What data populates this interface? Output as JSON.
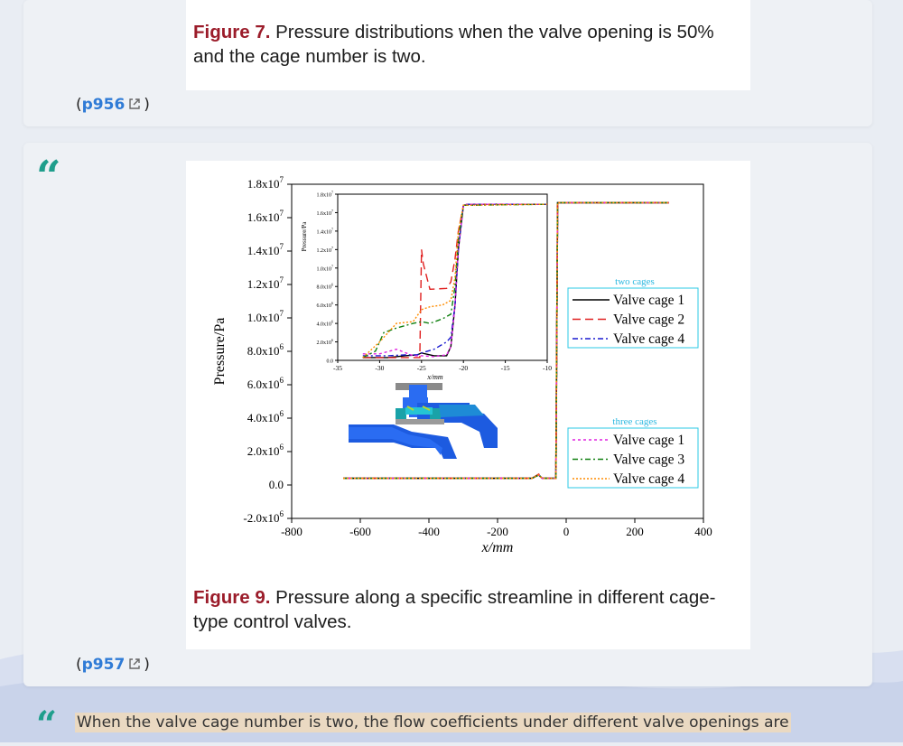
{
  "figure7": {
    "label": "Figure 7.",
    "text": " Pressure distributions when the valve opening is 50% and the cage number is two.",
    "page_ref_open": "(",
    "page_ref": "p956",
    "page_ref_close": ")"
  },
  "figure9": {
    "label": "Figure 9.",
    "text": " Pressure along a specific streamline in different cage-type control valves.",
    "page_ref_open": "(",
    "page_ref": "p957",
    "page_ref_close": ")"
  },
  "quote_mark": "“",
  "bottom_text": "When the valve cage number is two, the flow coefficients under different valve openings are",
  "chart_data": {
    "type": "line",
    "xlabel": "x/mm",
    "ylabel": "Pressure/Pa",
    "xlim": [
      -800,
      400
    ],
    "ylim": [
      -2000000,
      18000000
    ],
    "x_ticks": [
      "-800",
      "-600",
      "-400",
      "-200",
      "0",
      "200",
      "400"
    ],
    "y_ticks": [
      "-2.0x10",
      "0.0",
      "2.0x10",
      "4.0x10",
      "6.0x10",
      "8.0x10",
      "1.0x10",
      "1.2x10",
      "1.4x10",
      "1.6x10",
      "1.8x10"
    ],
    "y_tick_values": [
      -2000000,
      0,
      2000000,
      4000000,
      6000000,
      8000000,
      10000000,
      12000000,
      14000000,
      16000000,
      18000000
    ],
    "y_tick_exps": [
      "6",
      "",
      "6",
      "6",
      "6",
      "6",
      "7",
      "7",
      "7",
      "7",
      "7"
    ],
    "legend_groups": [
      {
        "title": "two cages",
        "entries": [
          "Valve cage 1",
          "Valve cage 2",
          "Valve cage 4"
        ]
      },
      {
        "title": "three cages",
        "entries": [
          "Valve cage 1",
          "Valve cage 3",
          "Valve cage 4"
        ]
      }
    ],
    "series": [
      {
        "name": "Valve cage 1",
        "group": "two cages",
        "color": "#000000",
        "x": [
          -650,
          -100,
          -80,
          -70,
          -40,
          -30,
          -25,
          -20,
          300
        ],
        "y": [
          400000,
          400000,
          600000,
          400000,
          400000,
          400000,
          16900000,
          16900000,
          16900000
        ]
      },
      {
        "name": "Valve cage 2",
        "group": "two cages",
        "color": "#e02020",
        "x": [
          -650,
          -100,
          -80,
          -70,
          -40,
          -30,
          -25,
          -20,
          300
        ],
        "y": [
          400000,
          400000,
          650000,
          400000,
          400000,
          400000,
          16900000,
          16900000,
          16900000
        ]
      },
      {
        "name": "Valve cage 4",
        "group": "two cages",
        "color": "#1a1ad0",
        "x": [
          -650,
          -100,
          -80,
          -70,
          -40,
          -30,
          -25,
          -20,
          300
        ],
        "y": [
          400000,
          400000,
          600000,
          400000,
          400000,
          400000,
          16900000,
          16900000,
          16900000
        ]
      },
      {
        "name": "Valve cage 1",
        "group": "three cages",
        "color": "#e020e0",
        "x": [
          -650,
          -100,
          -80,
          -70,
          -40,
          -30,
          -25,
          -20,
          300
        ],
        "y": [
          400000,
          400000,
          600000,
          400000,
          400000,
          400000,
          16900000,
          16900000,
          16900000
        ]
      },
      {
        "name": "Valve cage 3",
        "group": "three cages",
        "color": "#108010",
        "x": [
          -650,
          -100,
          -80,
          -70,
          -40,
          -30,
          -25,
          -20,
          300
        ],
        "y": [
          400000,
          400000,
          600000,
          400000,
          400000,
          400000,
          16900000,
          16900000,
          16900000
        ]
      },
      {
        "name": "Valve cage 4",
        "group": "three cages",
        "color": "#ff8c00",
        "x": [
          -650,
          -100,
          -80,
          -70,
          -40,
          -30,
          -25,
          -20,
          300
        ],
        "y": [
          400000,
          400000,
          600000,
          400000,
          400000,
          400000,
          16900000,
          16900000,
          16900000
        ]
      }
    ],
    "inset": {
      "xlabel": "x/mm",
      "ylabel": "Pressure/Pa",
      "xlim": [
        -35,
        -10
      ],
      "ylim": [
        0,
        18000000
      ],
      "x_ticks": [
        "-35",
        "-30",
        "-25",
        "-20",
        "-15",
        "-10"
      ],
      "y_ticks": [
        "0.0",
        "2.0x10",
        "4.0x10",
        "6.0x10",
        "8.0x10",
        "1.0x10",
        "1.2x10",
        "1.4x10",
        "1.6x10",
        "1.8x10"
      ],
      "y_tick_values": [
        0,
        2000000,
        4000000,
        6000000,
        8000000,
        10000000,
        12000000,
        14000000,
        16000000,
        18000000
      ],
      "series": [
        {
          "name": "Valve cage 1",
          "color": "#000000",
          "dash": "",
          "x": [
            -32,
            -29,
            -27,
            -25.5,
            -25,
            -23.5,
            -22,
            -21.5,
            -21,
            -20.6,
            -20,
            -19.5,
            -10
          ],
          "y": [
            300000,
            300000,
            500000,
            600000,
            800000,
            500000,
            500000,
            1500000,
            6000000,
            12000000,
            16800000,
            16900000,
            16900000
          ]
        },
        {
          "name": "Valve cage 2",
          "color": "#e02020",
          "dash": "9,5",
          "x": [
            -32,
            -30,
            -25.2,
            -25,
            -24.8,
            -24,
            -22,
            -21.5,
            -21,
            -20.6,
            -20,
            -19.5,
            -10
          ],
          "y": [
            300000,
            300000,
            300000,
            12000000,
            10500000,
            7700000,
            7800000,
            8500000,
            11000000,
            14000000,
            16800000,
            16900000,
            16900000
          ]
        },
        {
          "name": "Valve cage 4",
          "color": "#1a1ad0",
          "dash": "6,3,2,3",
          "x": [
            -32,
            -29,
            -27,
            -25.5,
            -25,
            -23.5,
            -22,
            -21.5,
            -21,
            -20.6,
            -20,
            -19.5,
            -10
          ],
          "y": [
            500000,
            500000,
            600000,
            600000,
            800000,
            1200000,
            2000000,
            2500000,
            6000000,
            12000000,
            16800000,
            16900000,
            16900000
          ]
        },
        {
          "name": "Valve cage 1",
          "color": "#e020e0",
          "dash": "3,3",
          "x": [
            -32,
            -30,
            -28,
            -26,
            -25,
            -23.5,
            -22,
            -21.5,
            -21,
            -20.6,
            -20,
            -19.5,
            -10
          ],
          "y": [
            700000,
            700000,
            1200000,
            500000,
            500000,
            400000,
            600000,
            1500000,
            6000000,
            12000000,
            16800000,
            16900000,
            16900000
          ]
        },
        {
          "name": "Valve cage 3",
          "color": "#108010",
          "dash": "6,3,2,3",
          "x": [
            -32,
            -30.5,
            -29.5,
            -28,
            -26,
            -25,
            -24,
            -22.5,
            -21.5,
            -21,
            -20.6,
            -20,
            -10
          ],
          "y": [
            300000,
            1000000,
            3000000,
            3500000,
            4000000,
            4200000,
            4000000,
            4500000,
            5000000,
            8000000,
            13000000,
            16800000,
            16900000
          ]
        },
        {
          "name": "Valve cage 4",
          "color": "#ff8c00",
          "dash": "2,2",
          "x": [
            -32,
            -30,
            -28,
            -26,
            -25,
            -24,
            -22.5,
            -21.5,
            -21,
            -20.6,
            -20,
            -10
          ],
          "y": [
            300000,
            2000000,
            4000000,
            4200000,
            5500000,
            5800000,
            6000000,
            6500000,
            9000000,
            14000000,
            16800000,
            16900000
          ]
        }
      ]
    }
  }
}
